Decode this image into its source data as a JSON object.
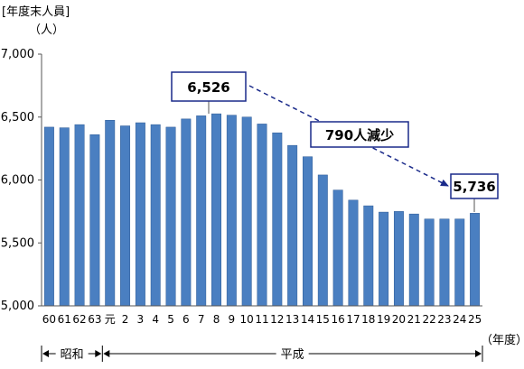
{
  "chart_data": {
    "type": "bar",
    "ylabel": "[年度末人員]",
    "yunit": "（人）",
    "xunit": "（年度）",
    "ylim": [
      5000,
      7000
    ],
    "yticks": [
      "5,000",
      "5,500",
      "6,000",
      "6,500",
      "7,000"
    ],
    "categories": [
      "60",
      "61",
      "62",
      "63",
      "元",
      "2",
      "3",
      "4",
      "5",
      "6",
      "7",
      "8",
      "9",
      "10",
      "11",
      "12",
      "13",
      "14",
      "15",
      "16",
      "17",
      "18",
      "19",
      "20",
      "21",
      "22",
      "23",
      "24",
      "25"
    ],
    "values": [
      6420,
      6415,
      6440,
      6360,
      6475,
      6430,
      6455,
      6440,
      6420,
      6485,
      6510,
      6526,
      6515,
      6500,
      6445,
      6375,
      6275,
      6185,
      6040,
      5920,
      5840,
      5795,
      5745,
      5750,
      5730,
      5690,
      5690,
      5690,
      5736
    ],
    "bar_color": "#4a7fc1",
    "eras": [
      {
        "label": "昭和",
        "from": "60",
        "to": "63"
      },
      {
        "label": "平成",
        "from": "元",
        "to": "25"
      }
    ],
    "annotations": {
      "start_value": "6,526",
      "end_value": "5,736",
      "decrease": "790人減少"
    }
  }
}
